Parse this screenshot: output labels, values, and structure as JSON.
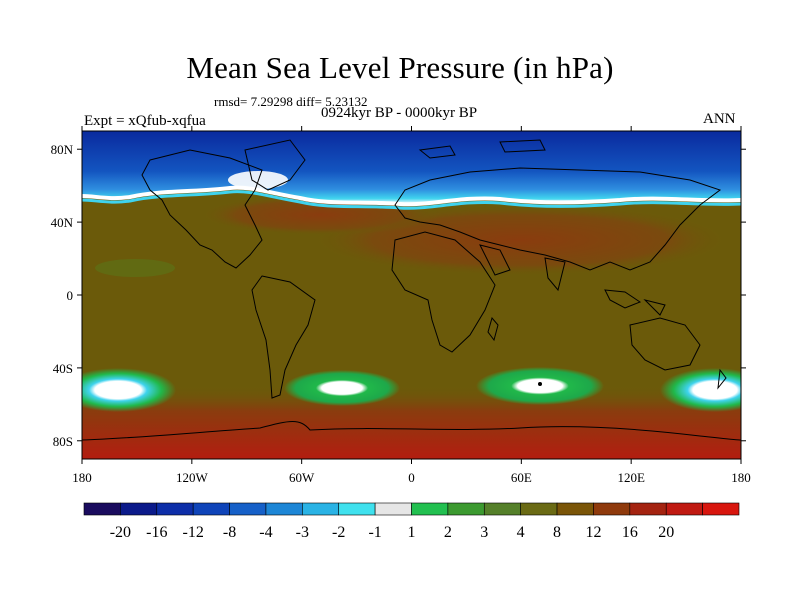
{
  "title": "Mean Sea Level Pressure (in hPa)",
  "stats": "rmsd= 7.29298 diff= 5.23132",
  "experiment_label": "Expt = xQfub-xqfua",
  "period_label": "0924kyr BP - 0000kyr BP",
  "season_label": "ANN",
  "colors": {
    "ocean_base": "#6b5a0a",
    "warm": "#8a3c0e",
    "hot": "#b31d10",
    "polar_deep": "#0a2a9e",
    "polar_mid": "#1355c0",
    "polar_light": "#2f8fe0",
    "cyan": "#3fd3ee",
    "white": "#ffffff",
    "green": "#20b84a",
    "coast": "#000000"
  },
  "lat_labels": [
    "80N",
    "40N",
    "0",
    "40S",
    "80S"
  ],
  "lon_labels": [
    "180",
    "120W",
    "60W",
    "0",
    "60E",
    "120E",
    "180"
  ],
  "colorbar": {
    "colors": [
      "#1a0b5e",
      "#0b1a8a",
      "#0d2ea8",
      "#0f44b9",
      "#1660c8",
      "#1d86d6",
      "#2ab3e5",
      "#3fe1ee",
      "#e6e6e6",
      "#22c050",
      "#3c9a30",
      "#55802a",
      "#6a6a14",
      "#7a5508",
      "#8f3a0c",
      "#a42310",
      "#c01a12",
      "#d8160e"
    ],
    "labels": [
      "-20",
      "-16",
      "-12",
      "-8",
      "-4",
      "-3",
      "-2",
      "-1",
      "1",
      "2",
      "3",
      "4",
      "8",
      "12",
      "16",
      "20"
    ]
  }
}
